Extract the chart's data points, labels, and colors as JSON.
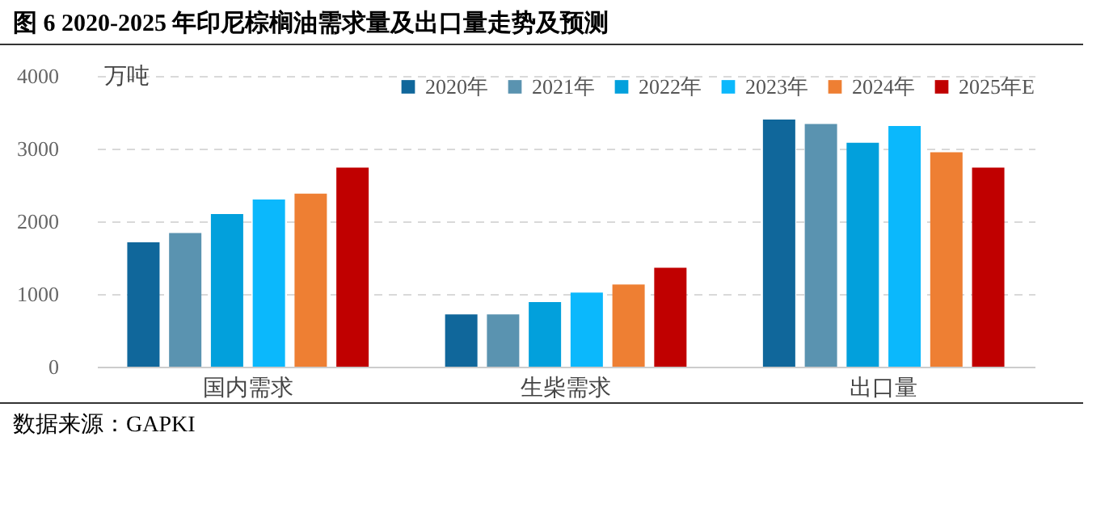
{
  "chart_data": {
    "type": "bar",
    "title": "图 6 2020-2025 年印尼棕榈油需求量及出口量走势及预测",
    "ylabel": "万吨",
    "categories": [
      "国内需求",
      "生柴需求",
      "出口量"
    ],
    "series": [
      {
        "name": "2020年",
        "color": "#10679b",
        "values": [
          1710,
          720,
          3400
        ]
      },
      {
        "name": "2021年",
        "color": "#5a93b0",
        "values": [
          1840,
          720,
          3340
        ]
      },
      {
        "name": "2022年",
        "color": "#02a0dc",
        "values": [
          2100,
          890,
          3080
        ]
      },
      {
        "name": "2023年",
        "color": "#0bb8fc",
        "values": [
          2300,
          1020,
          3310
        ]
      },
      {
        "name": "2024年",
        "color": "#ee7f33",
        "values": [
          2380,
          1130,
          2950
        ]
      },
      {
        "name": "2025年E",
        "color": "#c00000",
        "values": [
          2740,
          1360,
          2740
        ]
      }
    ],
    "ylim": [
      0,
      4000
    ],
    "yticks": [
      0,
      1000,
      2000,
      3000,
      4000
    ],
    "grid": "y",
    "legend": "top right",
    "annotations": [
      "数据来源：GAPKI"
    ]
  }
}
